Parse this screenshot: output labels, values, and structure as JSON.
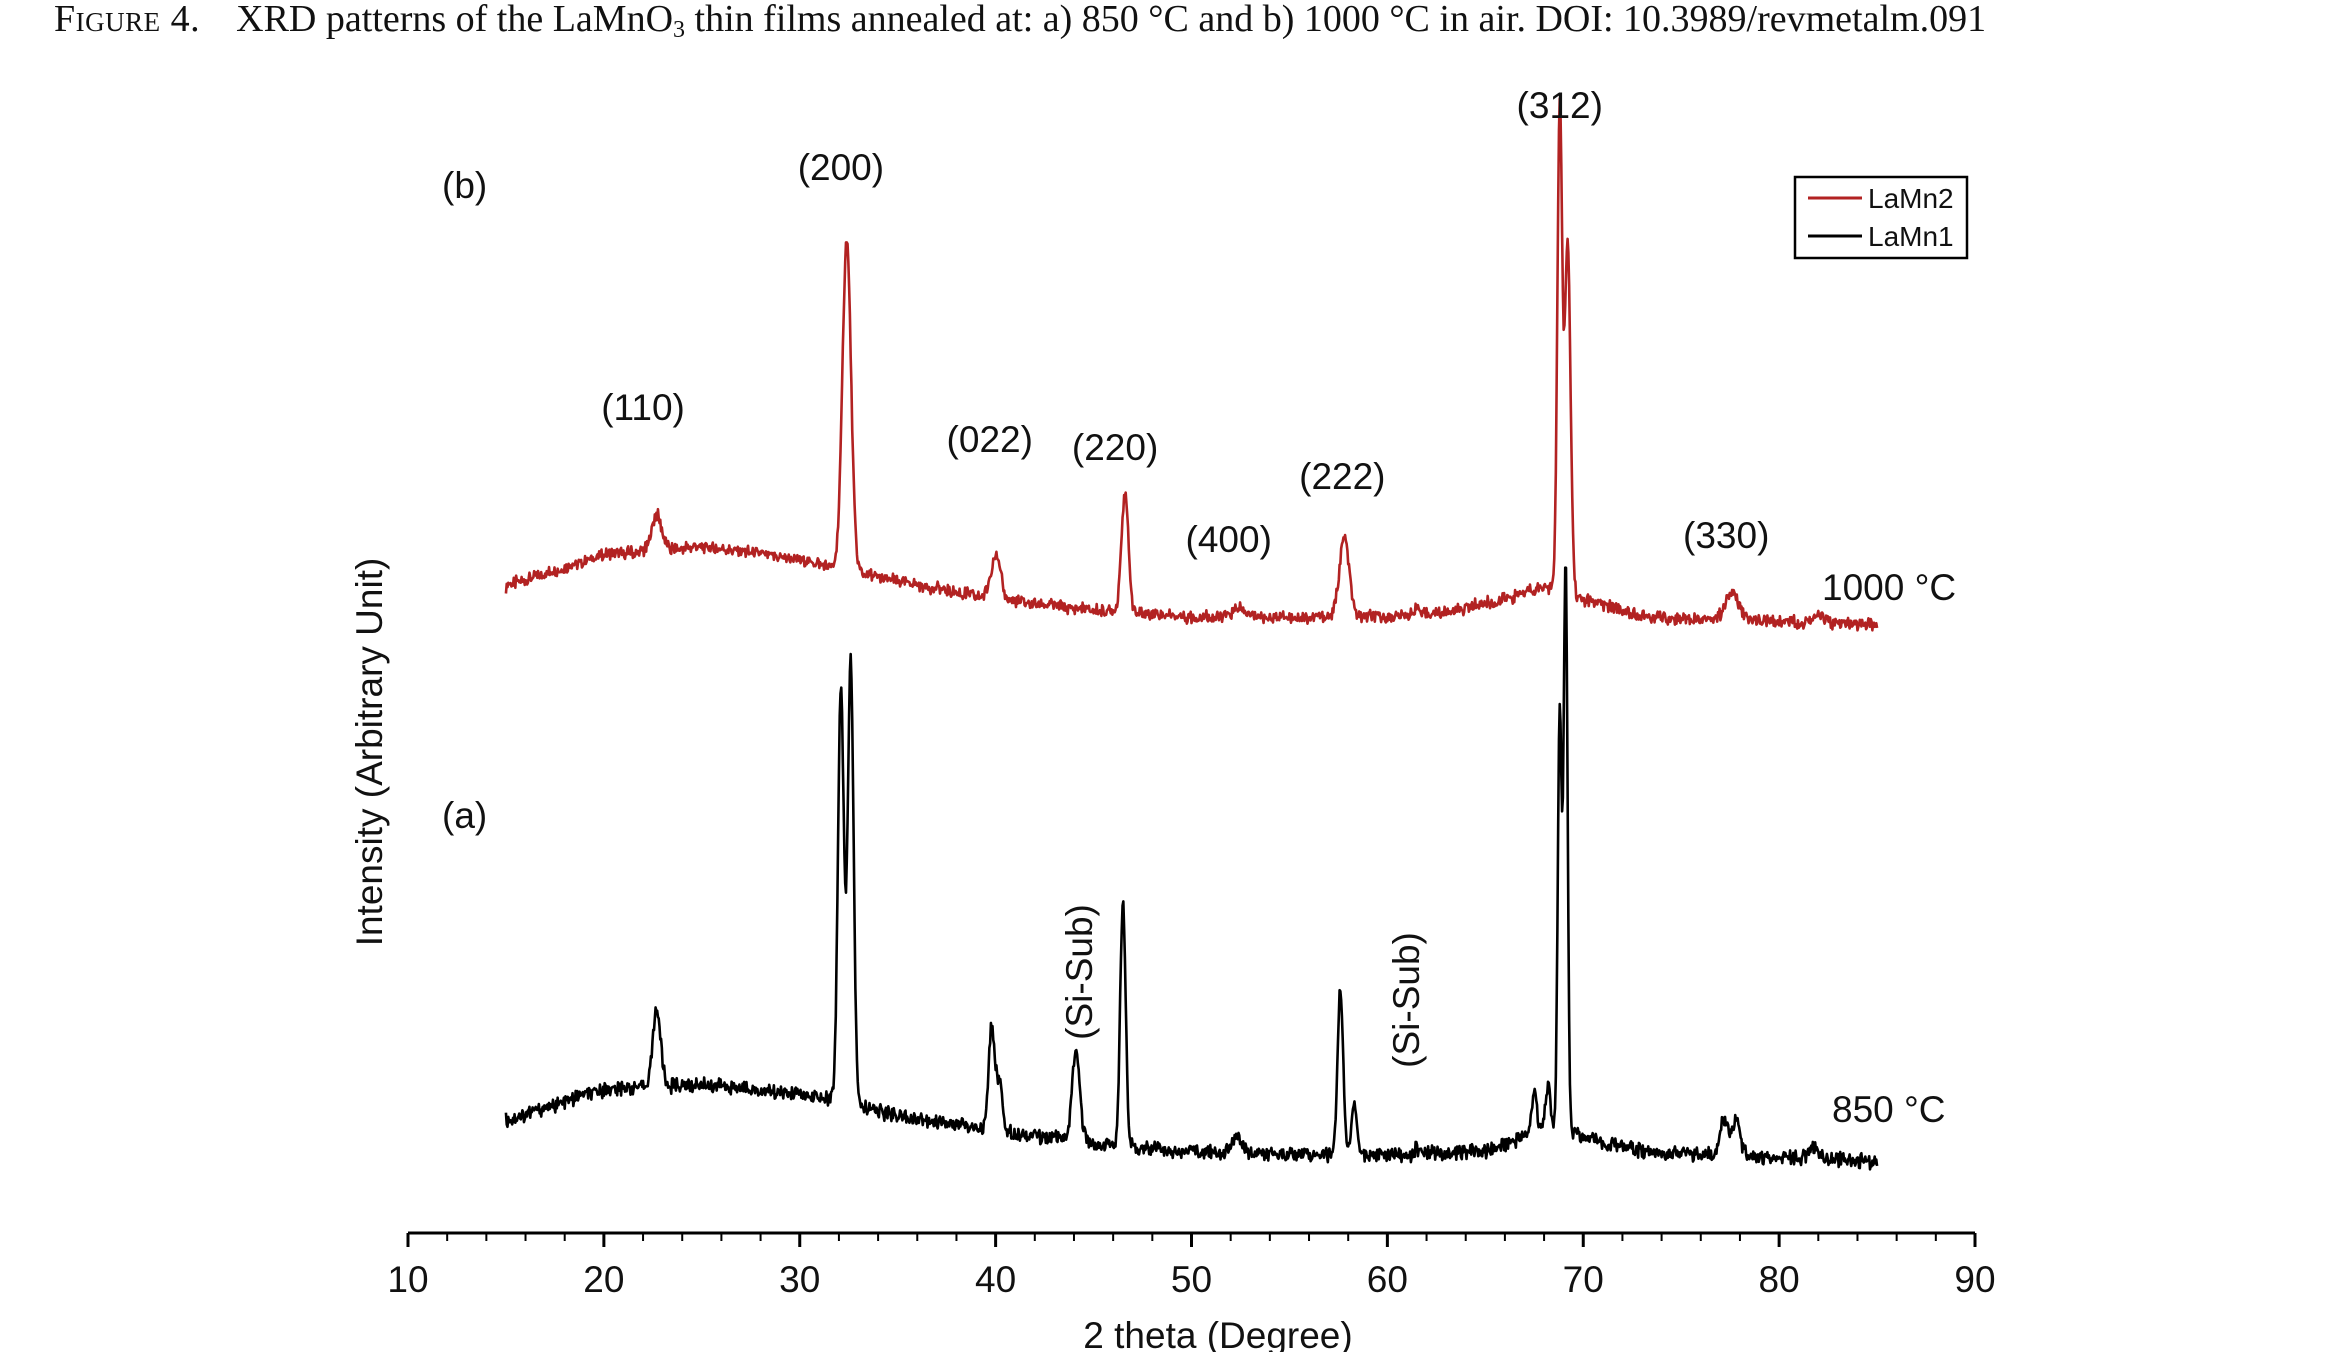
{
  "caption": {
    "figure_label": "Figure 4.",
    "text_before_sub": "XRD patterns of the LaMnO",
    "subscript": "3",
    "text_after_sub": " thin films annealed at: a) 850 °C and b) 1000 °C in air. DOI: 10.3989/revmetalm.091"
  },
  "chart_data": {
    "type": "line",
    "xlabel": "2 theta (Degree)",
    "ylabel": "Intensity (Arbitrary Unit)",
    "xlim": [
      10,
      90
    ],
    "xticks": [
      "10",
      "20",
      "30",
      "40",
      "50",
      "60",
      "70",
      "80",
      "90"
    ],
    "grid": false,
    "legend": {
      "position": "top-right",
      "entries": [
        {
          "name": "LaMn2",
          "color": "#b22222"
        },
        {
          "name": "LaMn1",
          "color": "#000000"
        }
      ]
    },
    "panel_labels": [
      "(b)",
      "(a)"
    ],
    "curve_labels": [
      "1000 °C",
      "850 °C"
    ],
    "series": [
      {
        "name": "LaMn2",
        "color": "#b22222",
        "x_range": [
          15,
          85
        ],
        "baseline": [
          [
            15,
            0.1
          ],
          [
            20,
            0.17
          ],
          [
            25,
            0.19
          ],
          [
            30,
            0.16
          ],
          [
            35,
            0.11
          ],
          [
            40,
            0.07
          ],
          [
            45,
            0.045
          ],
          [
            50,
            0.03
          ],
          [
            55,
            0.03
          ],
          [
            60,
            0.03
          ],
          [
            63,
            0.04
          ],
          [
            66,
            0.07
          ],
          [
            68,
            0.1
          ],
          [
            70,
            0.07
          ],
          [
            73,
            0.03
          ],
          [
            80,
            0.02
          ],
          [
            85,
            0.01
          ]
        ],
        "peaks": [
          {
            "x": 22.7,
            "h": 0.08,
            "w": 0.25
          },
          {
            "x": 32.4,
            "h": 0.75,
            "w": 0.22
          },
          {
            "x": 40.0,
            "h": 0.1,
            "w": 0.25
          },
          {
            "x": 46.6,
            "h": 0.27,
            "w": 0.18
          },
          {
            "x": 52.4,
            "h": 0.02,
            "w": 0.3
          },
          {
            "x": 57.8,
            "h": 0.18,
            "w": 0.25
          },
          {
            "x": 61.5,
            "h": 0.02,
            "w": 0.1
          },
          {
            "x": 68.8,
            "h": 1.1,
            "w": 0.12
          },
          {
            "x": 69.2,
            "h": 0.8,
            "w": 0.15
          },
          {
            "x": 77.6,
            "h": 0.06,
            "w": 0.35
          },
          {
            "x": 82.0,
            "h": 0.015,
            "w": 0.4
          }
        ]
      },
      {
        "name": "LaMn1",
        "color": "#000000",
        "x_range": [
          15,
          85
        ],
        "baseline": [
          [
            15,
            0.08
          ],
          [
            20,
            0.14
          ],
          [
            25,
            0.15
          ],
          [
            30,
            0.13
          ],
          [
            35,
            0.09
          ],
          [
            40,
            0.06
          ],
          [
            45,
            0.035
          ],
          [
            50,
            0.02
          ],
          [
            55,
            0.015
          ],
          [
            60,
            0.015
          ],
          [
            65,
            0.02
          ],
          [
            67,
            0.05
          ],
          [
            68,
            0.07
          ],
          [
            70,
            0.05
          ],
          [
            73,
            0.02
          ],
          [
            80,
            0.01
          ],
          [
            85,
            0.0
          ]
        ],
        "peaks": [
          {
            "x": 22.7,
            "h": 0.15,
            "w": 0.2
          },
          {
            "x": 32.1,
            "h": 0.8,
            "w": 0.15
          },
          {
            "x": 32.6,
            "h": 0.85,
            "w": 0.15
          },
          {
            "x": 39.8,
            "h": 0.2,
            "w": 0.15
          },
          {
            "x": 40.2,
            "h": 0.1,
            "w": 0.15
          },
          {
            "x": 44.1,
            "h": 0.17,
            "w": 0.2
          },
          {
            "x": 46.5,
            "h": 0.47,
            "w": 0.14
          },
          {
            "x": 52.3,
            "h": 0.03,
            "w": 0.25
          },
          {
            "x": 57.6,
            "h": 0.32,
            "w": 0.14
          },
          {
            "x": 58.3,
            "h": 0.1,
            "w": 0.14
          },
          {
            "x": 61.5,
            "h": 0.01,
            "w": 0.1
          },
          {
            "x": 67.5,
            "h": 0.08,
            "w": 0.12
          },
          {
            "x": 68.2,
            "h": 0.08,
            "w": 0.12
          },
          {
            "x": 68.8,
            "h": 0.8,
            "w": 0.1
          },
          {
            "x": 69.1,
            "h": 1.1,
            "w": 0.1
          },
          {
            "x": 77.2,
            "h": 0.07,
            "w": 0.2
          },
          {
            "x": 77.8,
            "h": 0.07,
            "w": 0.2
          },
          {
            "x": 81.8,
            "h": 0.02,
            "w": 0.3
          }
        ]
      }
    ],
    "annotations": [
      {
        "panel": "b",
        "text": "(110)",
        "x": 22.0
      },
      {
        "panel": "b",
        "text": "(200)",
        "x": 32.1
      },
      {
        "panel": "b",
        "text": "(022)",
        "x": 39.7
      },
      {
        "panel": "b",
        "text": "(220)",
        "x": 46.1
      },
      {
        "panel": "b",
        "text": "(400)",
        "x": 51.9
      },
      {
        "panel": "b",
        "text": "(222)",
        "x": 57.7
      },
      {
        "panel": "b",
        "text": "(312)",
        "x": 68.8
      },
      {
        "panel": "b",
        "text": "(330)",
        "x": 77.3
      },
      {
        "panel": "a",
        "text": "(Si-Sub)",
        "x": 44.3,
        "rotated": true
      },
      {
        "panel": "a",
        "text": "(Si-Sub)",
        "x": 61.0,
        "rotated": true
      }
    ]
  }
}
